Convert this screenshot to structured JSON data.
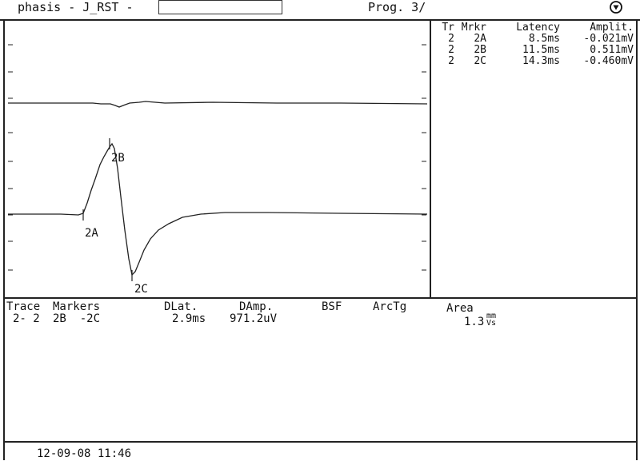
{
  "header": {
    "title": "phasis - J_RST -",
    "input_value": "",
    "program": "Prog. 3/",
    "icon": "circle-triangle-icon"
  },
  "plot": {
    "markers": [
      {
        "label": "2A"
      },
      {
        "label": "2B"
      },
      {
        "label": "2C"
      }
    ]
  },
  "marker_table": {
    "headers": [
      "Tr",
      "Mrkr",
      "Latency",
      "Amplit."
    ],
    "rows": [
      {
        "tr": "2",
        "marker": "2A",
        "latency": "8.5ms",
        "amplitude": "-0.021mV"
      },
      {
        "tr": "2",
        "marker": "2B",
        "latency": "11.5ms",
        "amplitude": "0.511mV"
      },
      {
        "tr": "2",
        "marker": "2C",
        "latency": "14.3ms",
        "amplitude": "-0.460mV"
      }
    ]
  },
  "measurements": {
    "headers": {
      "trace": "Trace",
      "markers": "Markers",
      "dlat": "DLat.",
      "damp": "DAmp.",
      "bsf": "BSF",
      "arctg": "ArcTg",
      "area": "Area"
    },
    "values": {
      "trace": "2- 2",
      "markers": "2B  -2C",
      "dlat": "2.9ms",
      "damp": "971.2uV",
      "area": "1.3",
      "area_unit_top": "mm",
      "area_unit_bottom": "Vs"
    }
  },
  "footer": {
    "datetime": "12-09-08 11:46"
  }
}
